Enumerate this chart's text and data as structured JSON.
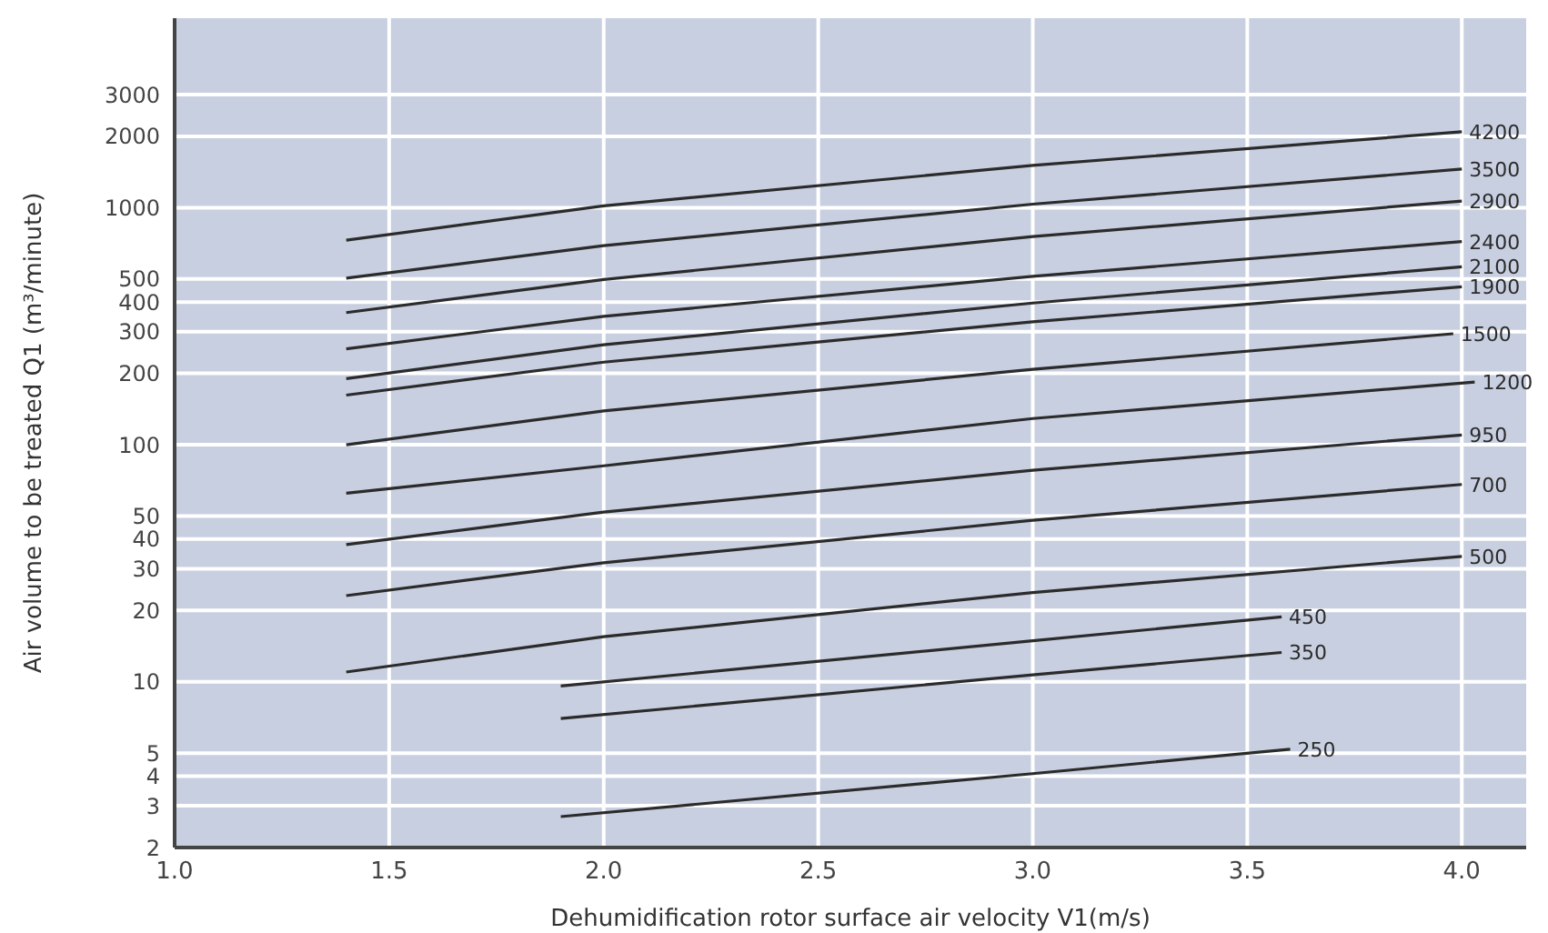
{
  "chart_data": {
    "type": "line",
    "xlabel": "Dehumidification rotor surface air velocity    V1(m/s)",
    "ylabel": "Air volume to be treated  Q1    (m³/minute)",
    "log": "y",
    "grid": true,
    "legend": false,
    "marker": "none",
    "line_style": "solid",
    "xlim": [
      1.0,
      4.15
    ],
    "xticks": [
      {
        "value": 1.0,
        "label": "1.0"
      },
      {
        "value": 1.5,
        "label": "1.5"
      },
      {
        "value": 2.0,
        "label": "2.0"
      },
      {
        "value": 2.5,
        "label": "2.5"
      },
      {
        "value": 3.0,
        "label": "3.0"
      },
      {
        "value": 3.5,
        "label": "3.5"
      },
      {
        "value": 4.0,
        "label": "4.0"
      }
    ],
    "ylim": [
      2,
      6300
    ],
    "yticks": [
      2,
      3,
      4,
      5,
      10,
      20,
      30,
      40,
      50,
      100,
      200,
      300,
      400,
      500,
      1000,
      2000,
      3000
    ],
    "series": [
      {
        "name": "4200",
        "color": "#2b2b2b",
        "x": [
          1.4,
          2.0,
          3.0,
          4.0
        ],
        "values": [
          729,
          1018,
          1507,
          2090
        ]
      },
      {
        "name": "3500",
        "color": "#2b2b2b",
        "x": [
          1.4,
          2.0,
          3.0,
          4.0
        ],
        "values": [
          504,
          692,
          1035,
          1455
        ]
      },
      {
        "name": "2900",
        "color": "#2b2b2b",
        "x": [
          1.4,
          2.0,
          3.0,
          4.0
        ],
        "values": [
          361,
          498,
          755,
          1067
        ]
      },
      {
        "name": "2400",
        "color": "#2b2b2b",
        "x": [
          1.4,
          2.0,
          3.0,
          4.0
        ],
        "values": [
          254,
          348,
          513,
          720
        ]
      },
      {
        "name": "2100",
        "color": "#2b2b2b",
        "x": [
          1.4,
          2.0,
          3.0,
          4.0
        ],
        "values": [
          190,
          264,
          396,
          563
        ]
      },
      {
        "name": "1900",
        "color": "#2b2b2b",
        "x": [
          1.4,
          2.0,
          3.0,
          4.0
        ],
        "values": [
          162,
          223,
          330,
          464
        ]
      },
      {
        "name": "1500",
        "color": "#2b2b2b",
        "x": [
          1.4,
          2.0,
          3.0,
          3.98
        ],
        "values": [
          100,
          139,
          208,
          294
        ]
      },
      {
        "name": "1200",
        "color": "#2b2b2b",
        "x": [
          1.4,
          2.0,
          3.0,
          4.03
        ],
        "values": [
          62.5,
          81.5,
          129,
          184
        ]
      },
      {
        "name": "950",
        "color": "#2b2b2b",
        "x": [
          1.4,
          2.0,
          3.0,
          4.0
        ],
        "values": [
          37.9,
          52,
          78,
          110
        ]
      },
      {
        "name": "700",
        "color": "#2b2b2b",
        "x": [
          1.4,
          2.0,
          3.0,
          4.0
        ],
        "values": [
          23.1,
          31.8,
          48,
          68
        ]
      },
      {
        "name": "500",
        "color": "#2b2b2b",
        "x": [
          1.4,
          2.0,
          3.0,
          4.0
        ],
        "values": [
          11,
          15.5,
          23.8,
          33.8
        ]
      },
      {
        "name": "450",
        "color": "#2b2b2b",
        "x": [
          1.9,
          3.0,
          3.58
        ],
        "values": [
          9.6,
          14.9,
          18.8
        ]
      },
      {
        "name": "350",
        "color": "#2b2b2b",
        "x": [
          1.9,
          3.0,
          3.58
        ],
        "values": [
          7,
          10.7,
          13.3
        ]
      },
      {
        "name": "250",
        "color": "#2b2b2b",
        "x": [
          1.9,
          3.0,
          3.6
        ],
        "values": [
          2.7,
          4.1,
          5.2
        ]
      }
    ]
  }
}
